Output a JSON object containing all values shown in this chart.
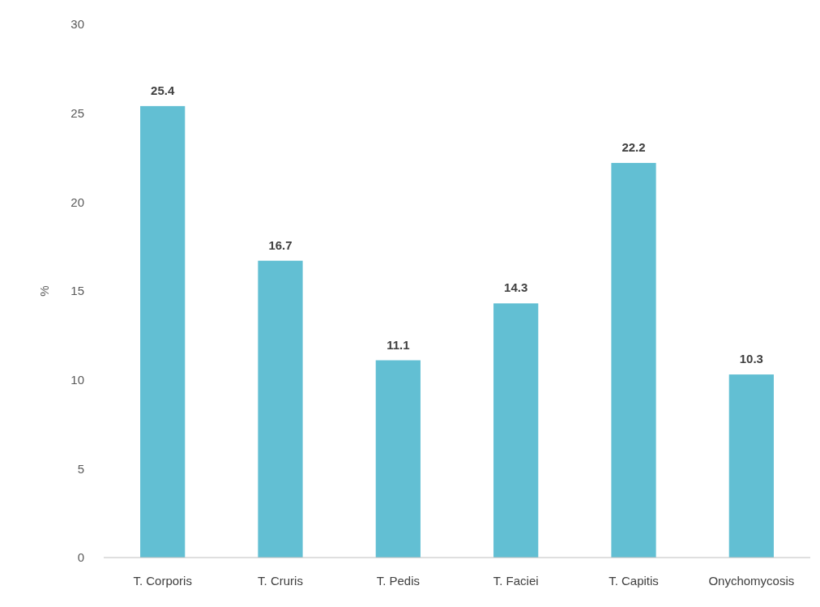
{
  "chart_data": {
    "type": "bar",
    "ylabel": "%",
    "categories": [
      "T. Corporis",
      "T. Cruris",
      "T. Pedis",
      "T. Faciei",
      "T. Capitis",
      "Onychomycosis"
    ],
    "values": [
      25.4,
      16.7,
      11.1,
      14.3,
      22.2,
      10.3
    ],
    "color": "#62bfd3",
    "ylim": [
      0,
      30
    ],
    "yticks": [
      0,
      5,
      10,
      15,
      20,
      25,
      30
    ],
    "grid": false,
    "data_labels": true
  }
}
